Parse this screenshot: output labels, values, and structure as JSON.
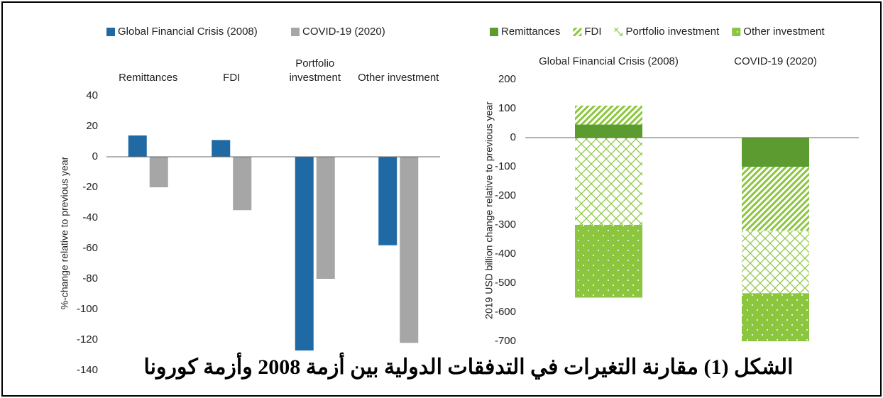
{
  "chart_data": [
    {
      "type": "bar",
      "ylabel": "%-change relative  to previous year",
      "categories": [
        "Remittances",
        "FDI",
        "Portfolio\ninvestment",
        "Other investment"
      ],
      "series": [
        {
          "name": "Global Financial Crisis (2008)",
          "color": "#1f6aa5",
          "values": [
            14,
            11,
            -127,
            -58
          ]
        },
        {
          "name": "COVID-19 (2020)",
          "color": "#a6a6a6",
          "values": [
            -20,
            -35,
            -80,
            -122
          ]
        }
      ],
      "ylim": [
        -140,
        40
      ],
      "yticks": [
        -140,
        -120,
        -100,
        -80,
        -60,
        -40,
        -20,
        0,
        20,
        40
      ],
      "legend": "top",
      "grid": false
    },
    {
      "type": "stacked_bar",
      "ylabel": "2019 USD billion change relative  to previous year",
      "categories": [
        "Global Financial Crisis (2008)",
        "COVID-19 (2020)"
      ],
      "series": [
        {
          "name": "Remittances",
          "color": "#5b9b2f",
          "pattern": "solid",
          "values": [
            45,
            -100
          ]
        },
        {
          "name": "FDI",
          "color": "#8cc63f",
          "pattern": "diagonal",
          "values": [
            65,
            -220
          ]
        },
        {
          "name": "Portfolio investment",
          "color": "#8cc63f",
          "pattern": "cross",
          "values": [
            -300,
            -215
          ]
        },
        {
          "name": "Other investment",
          "color": "#8cc63f",
          "pattern": "dots",
          "values": [
            -250,
            -165
          ]
        }
      ],
      "ylim": [
        -700,
        200
      ],
      "yticks": [
        -700,
        -600,
        -500,
        -400,
        -300,
        -200,
        -100,
        0,
        100,
        200
      ],
      "legend": "top",
      "grid": false
    }
  ],
  "caption": "الشكل (1) مقارنة التغيرات في التدفقات الدولية بين أزمة 2008 وأزمة كورونا"
}
